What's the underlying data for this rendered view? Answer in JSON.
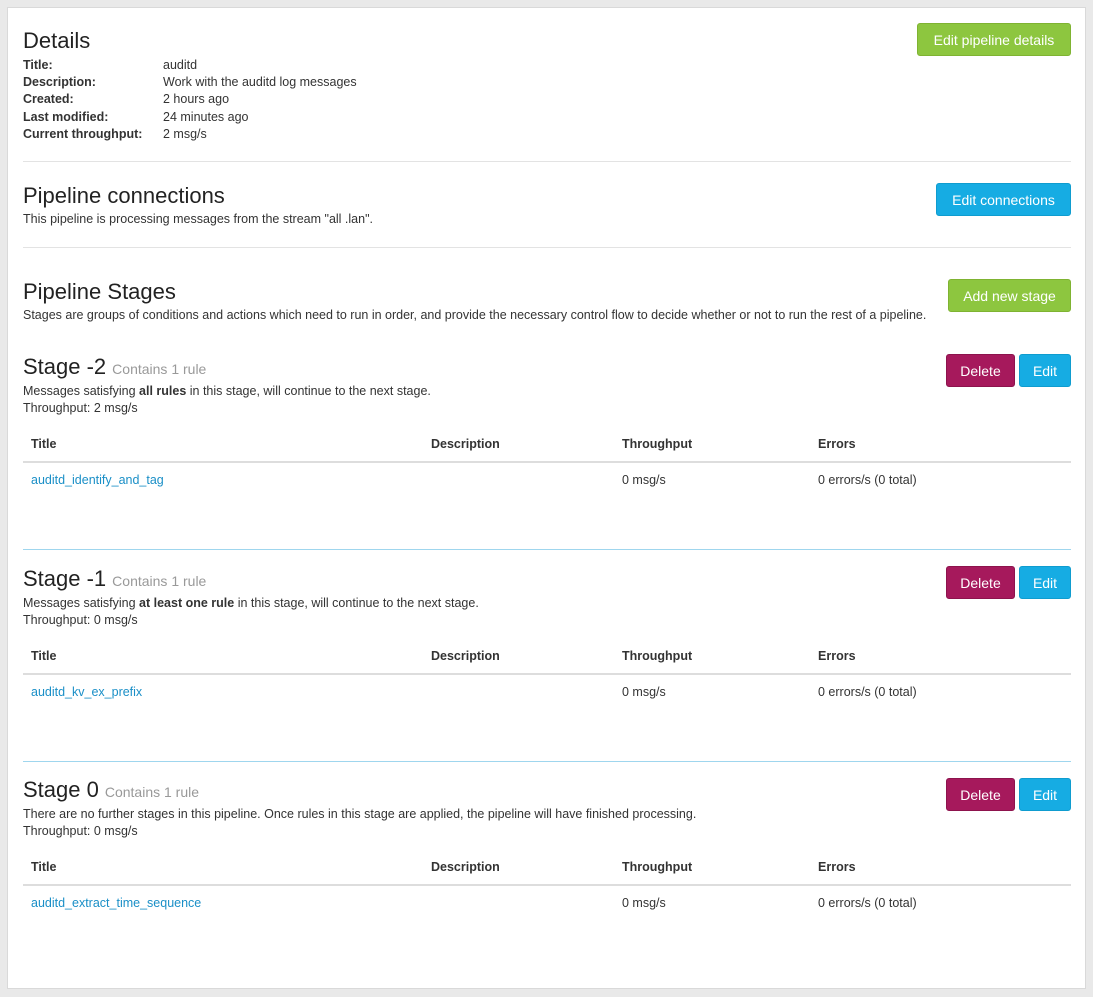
{
  "details": {
    "heading": "Details",
    "edit_button": "Edit pipeline details",
    "fields": [
      {
        "label": "Title:",
        "value": "auditd"
      },
      {
        "label": "Description:",
        "value": "Work with the auditd log messages"
      },
      {
        "label": "Created:",
        "value": "2 hours ago"
      },
      {
        "label": "Last modified:",
        "value": "24 minutes ago"
      },
      {
        "label": "Current throughput:",
        "value": "2 msg/s"
      }
    ]
  },
  "connections": {
    "heading": "Pipeline connections",
    "text": "This pipeline is processing messages from the stream \"all .lan\".",
    "edit_button": "Edit connections"
  },
  "stages_section": {
    "heading": "Pipeline Stages",
    "text": "Stages are groups of conditions and actions which need to run in order, and provide the necessary control flow to decide whether or not to run the rest of a pipeline.",
    "add_button": "Add new stage"
  },
  "table_headers": [
    "Title",
    "Description",
    "Throughput",
    "Errors"
  ],
  "stages": [
    {
      "title": "Stage -2",
      "subtitle": "Contains 1 rule",
      "desc_pre": "Messages satisfying ",
      "desc_bold": "all rules",
      "desc_post": " in this stage, will continue to the next stage.",
      "throughput": "Throughput: 2 msg/s",
      "delete": "Delete",
      "edit": "Edit",
      "rule": {
        "title": "auditd_identify_and_tag",
        "description": "",
        "throughput": "0 msg/s",
        "errors": "0 errors/s (0 total)"
      }
    },
    {
      "title": "Stage -1",
      "subtitle": "Contains 1 rule",
      "desc_pre": "Messages satisfying ",
      "desc_bold": "at least one rule",
      "desc_post": " in this stage, will continue to the next stage.",
      "throughput": "Throughput: 0 msg/s",
      "delete": "Delete",
      "edit": "Edit",
      "rule": {
        "title": "auditd_kv_ex_prefix",
        "description": "",
        "throughput": "0 msg/s",
        "errors": "0 errors/s (0 total)"
      }
    },
    {
      "title": "Stage 0",
      "subtitle": "Contains 1 rule",
      "desc_pre": "There are no further stages in this pipeline. Once rules in this stage are applied, the pipeline will have finished processing.",
      "desc_bold": "",
      "desc_post": "",
      "throughput": "Throughput: 0 msg/s",
      "delete": "Delete",
      "edit": "Edit",
      "rule": {
        "title": "auditd_extract_time_sequence",
        "description": "",
        "throughput": "0 msg/s",
        "errors": "0 errors/s (0 total)"
      }
    }
  ],
  "colors": {
    "green": "#8dc63f",
    "blue": "#16ace3",
    "purple": "#a6195c",
    "link": "#1a8fc7"
  }
}
